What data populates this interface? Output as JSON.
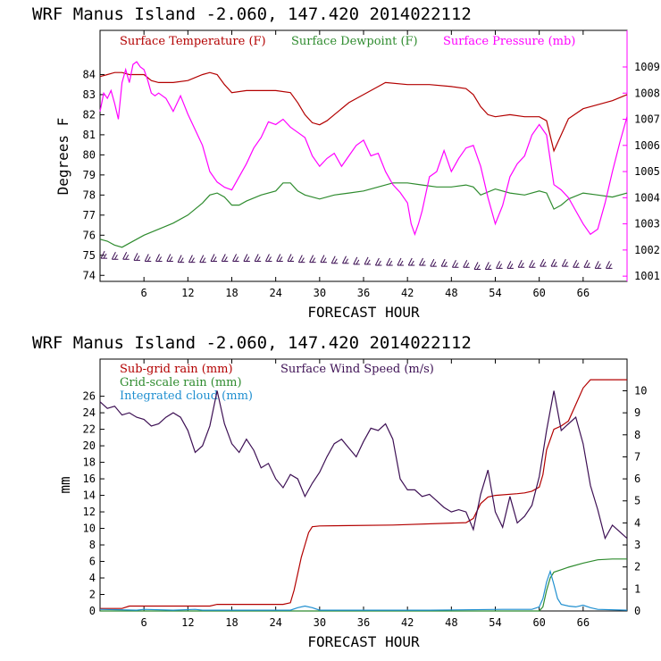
{
  "chart_data": [
    {
      "type": "line",
      "title": "WRF   Manus Island  -2.060, 147.420  2014022112",
      "xlabel": "FORECAST HOUR",
      "ylabel": "Degrees F",
      "xlim": [
        0,
        72
      ],
      "ylim": [
        73.7,
        86.2
      ],
      "y2lim": [
        1000.8,
        1010.4
      ],
      "x_ticks": [
        6,
        12,
        18,
        24,
        30,
        36,
        42,
        48,
        54,
        60,
        66
      ],
      "y_ticks": [
        74,
        75,
        76,
        77,
        78,
        79,
        80,
        81,
        82,
        83,
        84
      ],
      "y2_ticks": [
        1001,
        1002,
        1003,
        1004,
        1005,
        1006,
        1007,
        1008,
        1009
      ],
      "legend_placement": "top",
      "series": [
        {
          "name": "Surface Temperature (F)",
          "color": "#b30000",
          "axis": "left",
          "x": [
            0,
            1,
            2,
            3,
            4,
            5,
            6,
            7,
            8,
            10,
            12,
            14,
            15,
            16,
            17,
            18,
            20,
            22,
            24,
            26,
            27,
            28,
            29,
            30,
            31,
            32,
            34,
            36,
            38,
            39,
            42,
            45,
            48,
            50,
            51,
            52,
            53,
            54,
            56,
            58,
            60,
            61,
            62,
            63,
            64,
            66,
            68,
            70,
            72
          ],
          "y": [
            83.9,
            84.0,
            84.1,
            84.1,
            84.0,
            84.0,
            84.0,
            83.7,
            83.6,
            83.6,
            83.7,
            84.0,
            84.1,
            84.0,
            83.5,
            83.1,
            83.2,
            83.2,
            83.2,
            83.1,
            82.6,
            82.0,
            81.6,
            81.5,
            81.7,
            82.0,
            82.6,
            83.0,
            83.4,
            83.6,
            83.5,
            83.5,
            83.4,
            83.3,
            83.0,
            82.4,
            82.0,
            81.9,
            82.0,
            81.9,
            81.9,
            81.7,
            80.2,
            81.0,
            81.8,
            82.3,
            82.5,
            82.7,
            83.0
          ]
        },
        {
          "name": "Surface Dewpoint (F)",
          "color": "#2e8b2e",
          "axis": "left",
          "x": [
            0,
            1,
            2,
            3,
            4,
            6,
            8,
            10,
            12,
            14,
            15,
            16,
            17,
            18,
            19,
            20,
            22,
            24,
            25,
            26,
            27,
            28,
            30,
            32,
            34,
            36,
            38,
            40,
            42,
            44,
            46,
            48,
            50,
            51,
            52,
            54,
            56,
            58,
            60,
            61,
            62,
            63,
            64,
            66,
            68,
            70,
            72
          ],
          "y": [
            75.8,
            75.7,
            75.5,
            75.4,
            75.6,
            76.0,
            76.3,
            76.6,
            77.0,
            77.6,
            78.0,
            78.1,
            77.9,
            77.5,
            77.5,
            77.7,
            78.0,
            78.2,
            78.6,
            78.6,
            78.2,
            78.0,
            77.8,
            78.0,
            78.1,
            78.2,
            78.4,
            78.6,
            78.6,
            78.5,
            78.4,
            78.4,
            78.5,
            78.4,
            78.0,
            78.3,
            78.1,
            78.0,
            78.2,
            78.1,
            77.3,
            77.5,
            77.8,
            78.1,
            78.0,
            77.9,
            78.1
          ]
        },
        {
          "name": "Surface Pressure (mb)",
          "color": "#ff00ff",
          "axis": "right",
          "x": [
            0,
            0.5,
            1,
            1.5,
            2,
            2.5,
            3,
            3.5,
            4,
            4.5,
            5,
            5.5,
            6,
            6.5,
            7,
            7.5,
            8,
            9,
            10,
            11,
            12,
            13,
            14,
            15,
            16,
            17,
            18,
            19,
            20,
            21,
            22,
            23,
            24,
            25,
            26,
            27,
            28,
            29,
            30,
            31,
            32,
            33,
            34,
            35,
            36,
            37,
            38,
            39,
            40,
            41,
            42,
            42.5,
            43,
            43.5,
            44,
            45,
            46,
            47,
            48,
            49,
            50,
            51,
            52,
            53,
            54,
            55,
            56,
            57,
            58,
            59,
            60,
            61,
            62,
            63,
            64,
            65,
            66,
            67,
            68,
            69,
            70,
            71,
            72
          ],
          "y": [
            1007.3,
            1008.0,
            1007.8,
            1008.1,
            1007.6,
            1007.0,
            1008.4,
            1008.9,
            1008.4,
            1009.1,
            1009.2,
            1009.0,
            1008.9,
            1008.5,
            1008.0,
            1007.9,
            1008.0,
            1007.8,
            1007.3,
            1007.9,
            1007.2,
            1006.6,
            1006.0,
            1005.0,
            1004.6,
            1004.4,
            1004.3,
            1004.8,
            1005.3,
            1005.9,
            1006.3,
            1006.9,
            1006.8,
            1007.0,
            1006.7,
            1006.5,
            1006.3,
            1005.6,
            1005.2,
            1005.5,
            1005.7,
            1005.2,
            1005.6,
            1006.0,
            1006.2,
            1005.6,
            1005.7,
            1005.0,
            1004.5,
            1004.2,
            1003.8,
            1003.0,
            1002.6,
            1003.0,
            1003.5,
            1004.8,
            1005.0,
            1005.8,
            1005.0,
            1005.5,
            1005.9,
            1006.0,
            1005.2,
            1004.0,
            1003.0,
            1003.7,
            1004.8,
            1005.3,
            1005.6,
            1006.4,
            1006.8,
            1006.4,
            1004.5,
            1004.3,
            1004.0,
            1003.5,
            1003.0,
            1002.6,
            1002.8,
            1003.8,
            1005.0,
            1006.1,
            1007.1
          ]
        }
      ],
      "wind_barbs": {
        "color": "#3d1054",
        "x": [
          0.5,
          2,
          3.5,
          5,
          6.5,
          8,
          9.5,
          11,
          12.5,
          14,
          15.5,
          17,
          18.5,
          20,
          21.5,
          23,
          24.5,
          26,
          27.5,
          29,
          30.5,
          32,
          33.5,
          35,
          36.5,
          38,
          39.5,
          41,
          42.5,
          44,
          45.5,
          47,
          48.5,
          50,
          51.5,
          53,
          54.5,
          56,
          57.5,
          59,
          60.5,
          62,
          63.5,
          65,
          66.5,
          68,
          69.5
        ],
        "y": [
          74.85,
          74.8,
          74.8,
          74.75,
          74.7,
          74.7,
          74.7,
          74.65,
          74.65,
          74.65,
          74.7,
          74.7,
          74.7,
          74.7,
          74.7,
          74.7,
          74.7,
          74.7,
          74.65,
          74.65,
          74.65,
          74.6,
          74.6,
          74.55,
          74.55,
          74.5,
          74.5,
          74.5,
          74.5,
          74.5,
          74.45,
          74.45,
          74.4,
          74.4,
          74.3,
          74.3,
          74.35,
          74.35,
          74.4,
          74.4,
          74.45,
          74.45,
          74.45,
          74.4,
          74.4,
          74.35,
          74.35
        ]
      }
    },
    {
      "type": "line",
      "title": "WRF   Manus Island  -2.060, 147.420  2014022112",
      "xlabel": "FORECAST HOUR",
      "ylabel": "mm",
      "xlim": [
        0,
        72
      ],
      "ylim": [
        0,
        30.5
      ],
      "y2lim": [
        0,
        11.44
      ],
      "x_ticks": [
        6,
        12,
        18,
        24,
        30,
        36,
        42,
        48,
        54,
        60,
        66
      ],
      "y_ticks": [
        0,
        2,
        4,
        6,
        8,
        10,
        12,
        14,
        16,
        18,
        20,
        22,
        24,
        26
      ],
      "y2_ticks": [
        0,
        1,
        2,
        3,
        4,
        5,
        6,
        7,
        8,
        9,
        10
      ],
      "legend_placement": "top-left",
      "series": [
        {
          "name": "Sub-grid rain (mm)",
          "color": "#b30000",
          "axis": "left",
          "x": [
            0,
            3,
            4,
            15,
            16,
            25,
            26,
            26.5,
            27,
            27.5,
            28,
            28.5,
            29,
            30,
            40,
            50,
            51,
            52,
            53,
            54,
            57,
            58,
            59,
            60,
            60.5,
            61,
            62,
            63,
            64,
            65,
            66,
            67,
            68,
            72
          ],
          "y": [
            0.3,
            0.3,
            0.6,
            0.6,
            0.8,
            0.8,
            1.0,
            2.5,
            4.5,
            6.5,
            8.0,
            9.5,
            10.2,
            10.3,
            10.4,
            10.7,
            11.2,
            13.0,
            13.8,
            14.0,
            14.2,
            14.3,
            14.5,
            15.0,
            16.5,
            19.5,
            22.0,
            22.4,
            23.0,
            25.0,
            27.0,
            28.0,
            28.0,
            28.0
          ]
        },
        {
          "name": "Grid-scale rain (mm)",
          "color": "#2e8b2e",
          "axis": "left",
          "x": [
            0,
            60,
            60.5,
            61,
            61.5,
            62,
            63,
            64,
            66,
            68,
            70,
            72
          ],
          "y": [
            0.0,
            0.0,
            0.5,
            2.5,
            4.0,
            4.7,
            5.0,
            5.3,
            5.8,
            6.2,
            6.3,
            6.3
          ]
        },
        {
          "name": "Integrated cloud (mm)",
          "color": "#1f8fd0",
          "axis": "left",
          "x": [
            0,
            5,
            6,
            10,
            13,
            14,
            20,
            26,
            27,
            28,
            29,
            30,
            35,
            45,
            55,
            59,
            60,
            60.5,
            61,
            61.5,
            62,
            62.5,
            63,
            64,
            65,
            66,
            67,
            68,
            72
          ],
          "y": [
            0.2,
            0.1,
            0.2,
            0.1,
            0.2,
            0.1,
            0.1,
            0.1,
            0.4,
            0.6,
            0.4,
            0.1,
            0.1,
            0.1,
            0.2,
            0.2,
            0.5,
            1.5,
            3.5,
            4.8,
            3.2,
            1.5,
            0.8,
            0.6,
            0.5,
            0.7,
            0.4,
            0.2,
            0.1
          ]
        },
        {
          "name": "Surface Wind Speed (m/s)",
          "color": "#3d1054",
          "axis": "right",
          "x": [
            0,
            1,
            2,
            3,
            4,
            5,
            6,
            7,
            8,
            9,
            10,
            11,
            12,
            13,
            14,
            15,
            16,
            17,
            18,
            19,
            20,
            21,
            22,
            23,
            24,
            25,
            26,
            27,
            28,
            29,
            30,
            31,
            32,
            33,
            34,
            35,
            36,
            37,
            38,
            39,
            40,
            41,
            42,
            43,
            44,
            45,
            46,
            47,
            48,
            49,
            50,
            51,
            52,
            53,
            54,
            55,
            56,
            57,
            58,
            59,
            60,
            61,
            62,
            63,
            64,
            65,
            66,
            67,
            68,
            69,
            70,
            71,
            72
          ],
          "y": [
            9.5,
            9.2,
            9.3,
            8.9,
            9.0,
            8.8,
            8.7,
            8.4,
            8.5,
            8.8,
            9.0,
            8.8,
            8.2,
            7.2,
            7.5,
            8.4,
            10.0,
            8.5,
            7.6,
            7.2,
            7.8,
            7.3,
            6.5,
            6.7,
            6.0,
            5.6,
            6.2,
            6.0,
            5.2,
            5.8,
            6.3,
            7.0,
            7.6,
            7.8,
            7.4,
            7.0,
            7.7,
            8.3,
            8.2,
            8.5,
            7.8,
            6.0,
            5.5,
            5.5,
            5.2,
            5.3,
            5.0,
            4.7,
            4.5,
            4.6,
            4.5,
            3.7,
            5.3,
            6.4,
            4.5,
            3.8,
            5.2,
            4.0,
            4.3,
            4.8,
            6.1,
            8.2,
            10.0,
            8.2,
            8.5,
            8.8,
            7.6,
            5.7,
            4.6,
            3.3,
            3.9,
            3.6,
            3.3
          ]
        }
      ]
    }
  ]
}
